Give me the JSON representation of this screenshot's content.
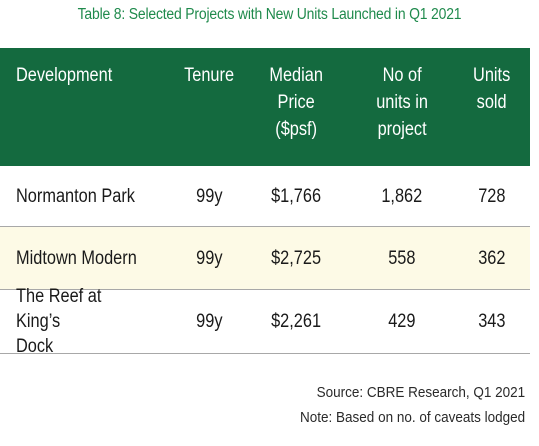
{
  "caption": "Table 8: Selected Projects with New Units Launched in Q1 2021",
  "table": {
    "headers": {
      "development": "Development",
      "tenure": "Tenure",
      "price": "Median\nPrice\n($psf)",
      "units": "No of\nunits in\nproject",
      "sold": "Units\nsold"
    },
    "rows": [
      {
        "development": "Normanton Park",
        "tenure": "99y",
        "price": "$1,766",
        "units": "1,862",
        "sold": "728"
      },
      {
        "development": "Midtown Modern",
        "tenure": "99y",
        "price": "$2,725",
        "units": "558",
        "sold": "362"
      },
      {
        "development": "The Reef at King’s\nDock",
        "tenure": "99y",
        "price": "$2,261",
        "units": "429",
        "sold": "343"
      }
    ]
  },
  "notes": {
    "source": "Source: CBRE Research, Q1 2021",
    "note": "Note: Based on no. of caveats lodged"
  },
  "colors": {
    "caption": "#1f8a4c",
    "header_bg": "#146a3f",
    "highlight_row": "#fdfae6"
  }
}
